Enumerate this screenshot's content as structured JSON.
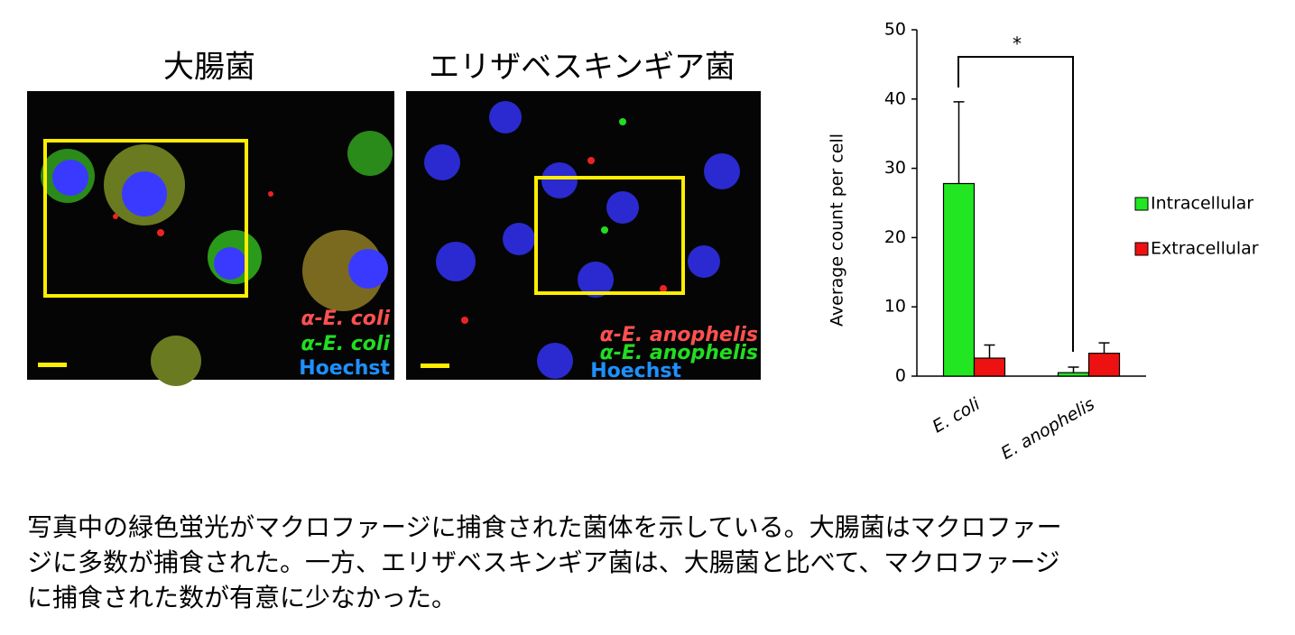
{
  "panels": [
    {
      "title": "大腸菌",
      "labels": [
        "α-E. coli",
        "α-E. coli",
        "Hoechst"
      ]
    },
    {
      "title": "エリザベスキンギア菌",
      "labels": [
        "α-E. anophelis",
        "α-E. anophelis",
        "Hoechst"
      ]
    }
  ],
  "chart_data": {
    "type": "bar",
    "categories": [
      "E. coli",
      "E. anophelis"
    ],
    "series": [
      {
        "name": "Intracellular",
        "color": "#22e622",
        "values": [
          27.8,
          0.5
        ],
        "errors": [
          11.8,
          0.8
        ]
      },
      {
        "name": "Extracellular",
        "color": "#ee1111",
        "values": [
          2.6,
          3.3
        ],
        "errors": [
          1.9,
          1.5
        ]
      }
    ],
    "ylabel": "Average count per cell",
    "ylim": [
      0,
      50
    ],
    "yticks": [
      0,
      10,
      20,
      30,
      40,
      50
    ],
    "annotation": "*",
    "legend": "right"
  },
  "caption": [
    "写真中の緑色蛍光がマクロファージに捕食された菌体を示している。大腸菌はマクロファー",
    "ジに多数が捕食された。一方、エリザベスキンギア菌は、大腸菌と比べて、マクロファージ",
    "に捕食された数が有意に少なかった。"
  ]
}
